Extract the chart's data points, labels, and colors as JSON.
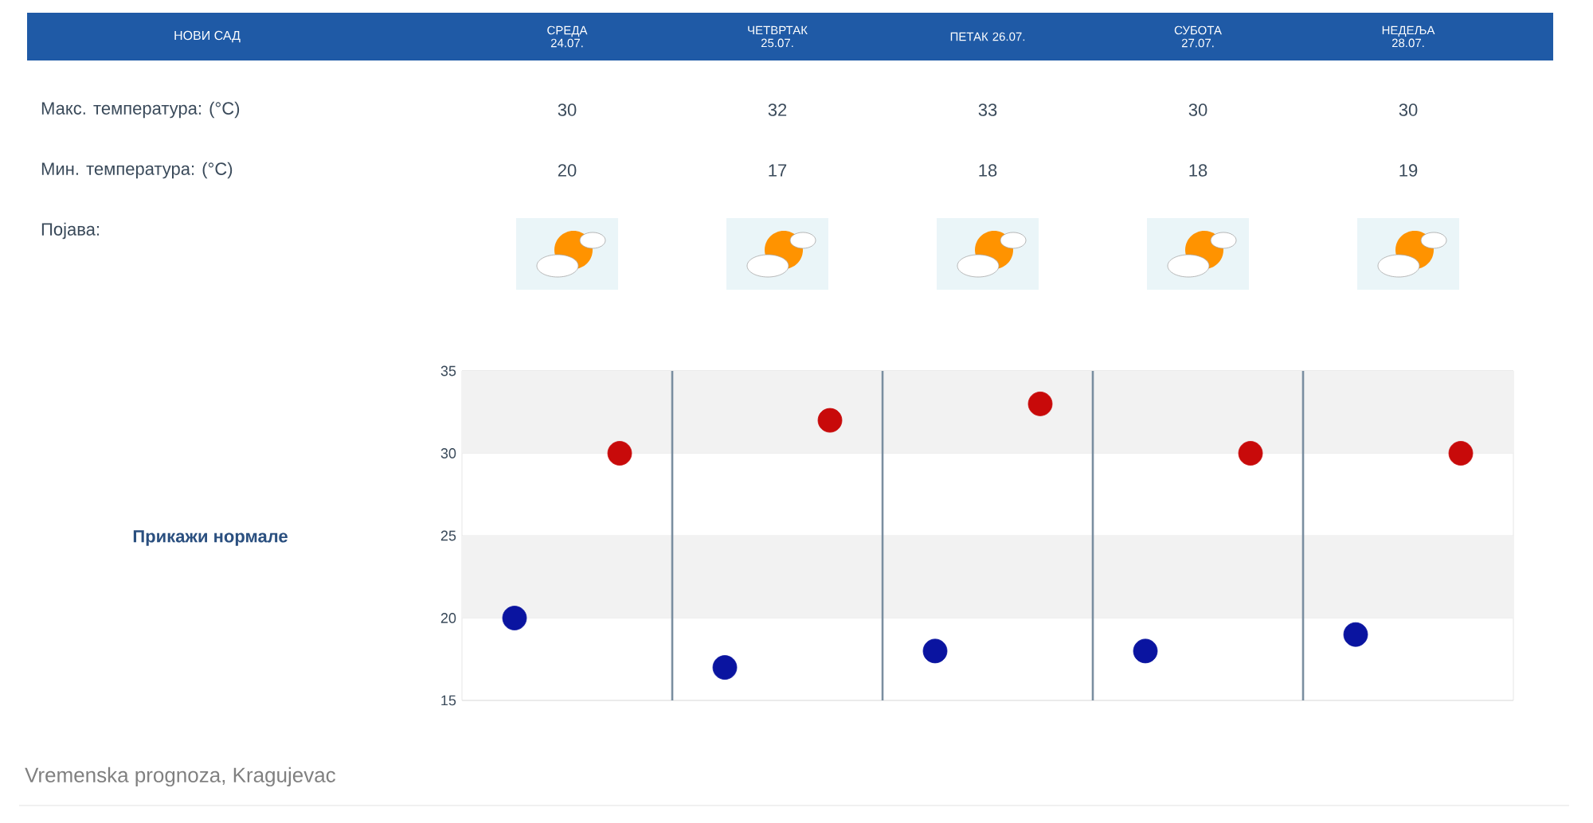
{
  "chart_data": [
    {
      "type": "other",
      "title": "НОВИ САД",
      "categories": [
        "СРЕДА 24.07.",
        "ЧЕТВРТАК 25.07.",
        "ПЕТАК 26.07.",
        "СУБОТА 27.07.",
        "НЕДЕЉА 28.07."
      ],
      "annotations": [
        "Макс. температура: (°C)",
        "30",
        "32",
        "33",
        "30",
        "30",
        "Мин. температура: (°C)",
        "20",
        "17",
        "18",
        "18",
        "19",
        "Појава:"
      ]
    },
    {
      "type": "scatter",
      "categories": [
        null,
        null,
        null,
        null,
        null
      ],
      "series": [
        {
          "color": "#0a14a0",
          "values": [
            20,
            17,
            18,
            18,
            19
          ]
        },
        {
          "color": "#c80a0a",
          "values": [
            30,
            32,
            33,
            30,
            30
          ]
        }
      ],
      "ylim": [
        15,
        35
      ],
      "yticks": [
        15,
        20,
        25,
        30,
        35
      ],
      "grid": "y",
      "bands": [
        {
          "axis": "y",
          "from": 20,
          "to": 25,
          "color": "#f2f2f2"
        },
        {
          "axis": "y",
          "from": 30,
          "to": 35,
          "color": "#f2f2f2"
        }
      ],
      "marker": "circle",
      "annotations": [
        "Прикажи нормале",
        "Vremenska prognoza, Kragujevac"
      ]
    }
  ]
}
